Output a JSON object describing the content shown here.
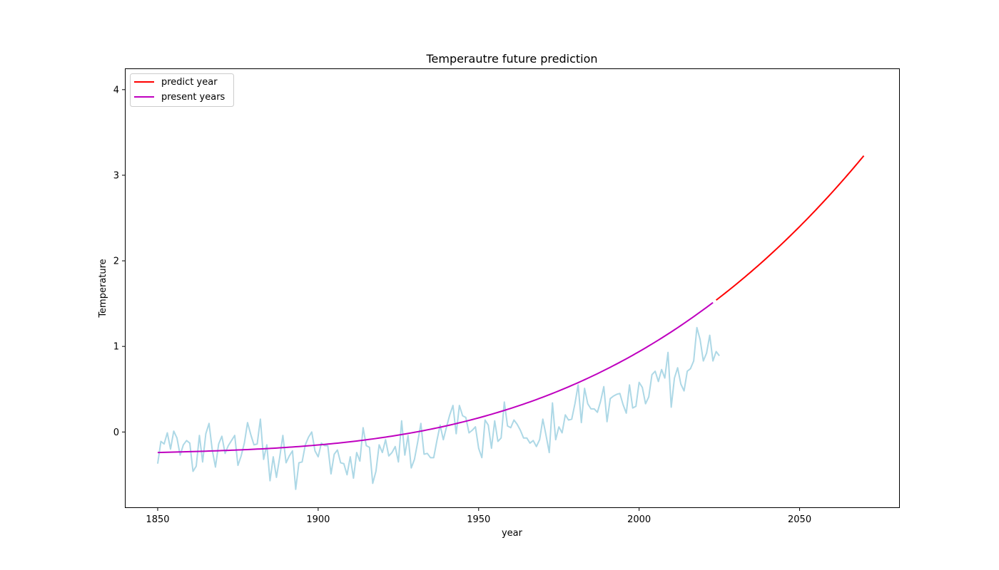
{
  "chart_data": {
    "type": "line",
    "title": "Temperautre future prediction",
    "xlabel": "year",
    "ylabel": "Temperature",
    "xlim": [
      1840,
      2081
    ],
    "ylim": [
      -0.88,
      4.24
    ],
    "xticks": [
      1850,
      1900,
      1950,
      2000,
      2050
    ],
    "yticks": [
      0,
      1,
      2,
      3,
      4
    ],
    "grid": false,
    "legend_position": "top-left",
    "observed": {
      "color": "#add8e6",
      "x_start": 1850,
      "values": [
        -0.37,
        -0.11,
        -0.14,
        -0.01,
        -0.2,
        0.01,
        -0.07,
        -0.27,
        -0.15,
        -0.1,
        -0.13,
        -0.46,
        -0.4,
        -0.04,
        -0.35,
        -0.02,
        0.1,
        -0.21,
        -0.41,
        -0.14,
        -0.05,
        -0.25,
        -0.16,
        -0.1,
        -0.04,
        -0.39,
        -0.28,
        -0.13,
        0.11,
        -0.03,
        -0.15,
        -0.14,
        0.15,
        -0.32,
        -0.15,
        -0.57,
        -0.29,
        -0.53,
        -0.3,
        -0.04,
        -0.36,
        -0.28,
        -0.22,
        -0.67,
        -0.36,
        -0.35,
        -0.15,
        -0.06,
        0.0,
        -0.22,
        -0.29,
        -0.13,
        -0.16,
        -0.16,
        -0.49,
        -0.26,
        -0.21,
        -0.36,
        -0.37,
        -0.5,
        -0.29,
        -0.54,
        -0.24,
        -0.34,
        0.05,
        -0.16,
        -0.18,
        -0.6,
        -0.46,
        -0.15,
        -0.24,
        -0.09,
        -0.28,
        -0.24,
        -0.17,
        -0.35,
        0.13,
        -0.27,
        -0.04,
        -0.42,
        -0.32,
        -0.12,
        0.1,
        -0.26,
        -0.25,
        -0.3,
        -0.3,
        -0.1,
        0.08,
        -0.09,
        0.06,
        0.2,
        0.31,
        -0.02,
        0.31,
        0.19,
        0.17,
        -0.01,
        0.02,
        0.06,
        -0.19,
        -0.3,
        0.14,
        0.08,
        -0.19,
        0.13,
        -0.11,
        -0.07,
        0.35,
        0.07,
        0.05,
        0.14,
        0.09,
        0.02,
        -0.07,
        -0.07,
        -0.13,
        -0.1,
        -0.17,
        -0.09,
        0.15,
        -0.04,
        -0.24,
        0.34,
        -0.09,
        0.06,
        -0.01,
        0.2,
        0.14,
        0.15,
        0.33,
        0.55,
        0.11,
        0.51,
        0.33,
        0.27,
        0.27,
        0.23,
        0.36,
        0.53,
        0.12,
        0.39,
        0.42,
        0.44,
        0.45,
        0.32,
        0.22,
        0.55,
        0.28,
        0.3,
        0.58,
        0.52,
        0.33,
        0.41,
        0.67,
        0.71,
        0.59,
        0.73,
        0.63,
        0.93,
        0.29,
        0.63,
        0.75,
        0.56,
        0.48,
        0.71,
        0.74,
        0.83,
        1.22,
        1.08,
        0.83,
        0.92,
        1.13,
        0.83,
        0.94,
        0.89
      ]
    },
    "series": [
      {
        "name": "predict year",
        "color": "#ff0000",
        "x_range": [
          2024,
          2070
        ],
        "fit": "cubic",
        "anchor_year": 1850,
        "coefficients": [
          -0.24,
          0.001,
          0.0,
          3.05e-07
        ]
      },
      {
        "name": "present years",
        "color": "#bf00bf",
        "x_range": [
          1850,
          2023
        ],
        "fit": "cubic",
        "anchor_year": 1850,
        "coefficients": [
          -0.24,
          0.001,
          0.0,
          3.05e-07
        ]
      }
    ]
  }
}
